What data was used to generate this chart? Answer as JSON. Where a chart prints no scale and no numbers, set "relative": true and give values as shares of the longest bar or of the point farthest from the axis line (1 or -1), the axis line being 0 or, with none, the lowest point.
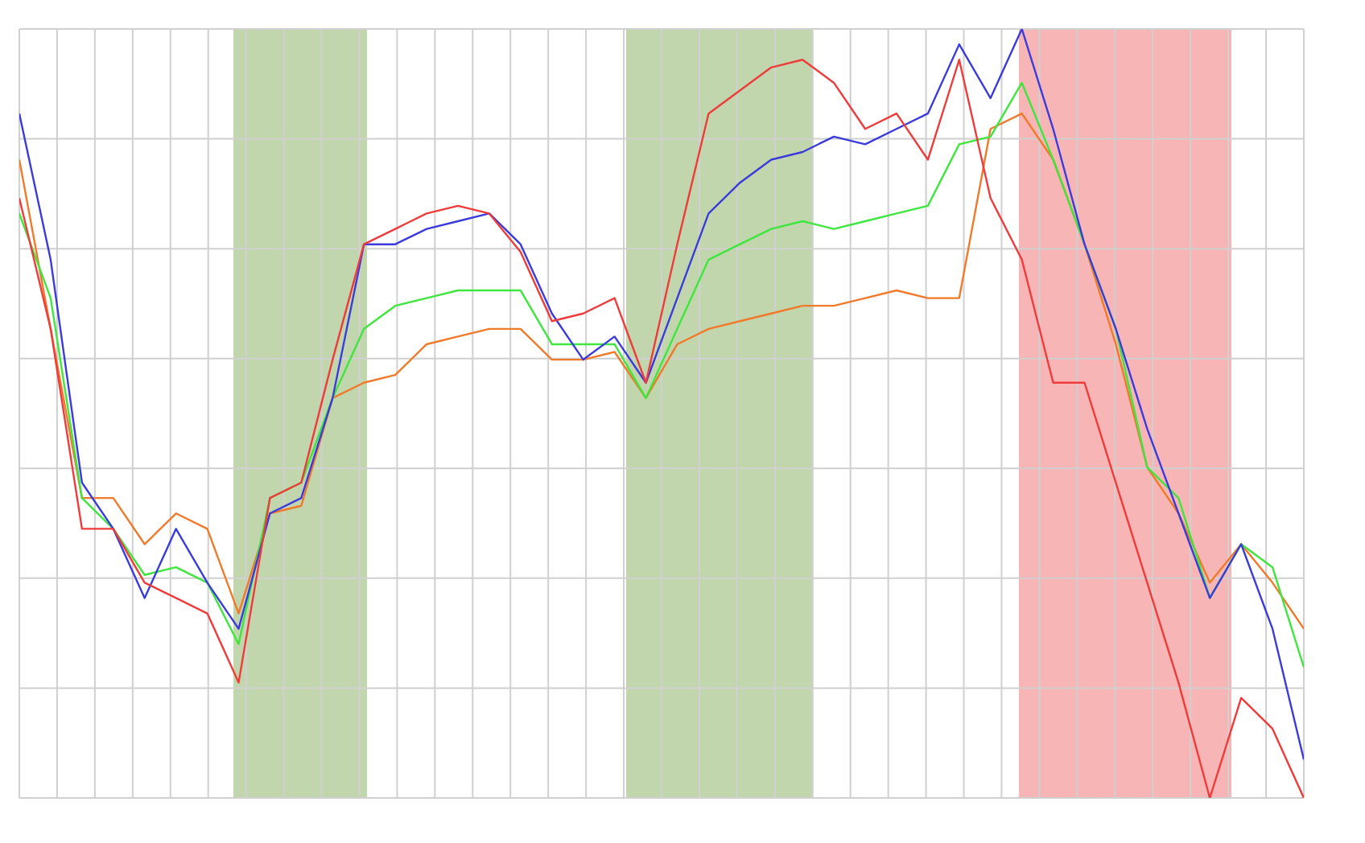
{
  "chart_data": {
    "type": "line",
    "relative": true,
    "grid": true,
    "categories": [
      null,
      null,
      null,
      null,
      null,
      null,
      null,
      null,
      null,
      null,
      null,
      null,
      null,
      null,
      null,
      null,
      null,
      null,
      null,
      null,
      null,
      null,
      null,
      null,
      null,
      null,
      null,
      null,
      null,
      null,
      null,
      null,
      null,
      null,
      null,
      null,
      null,
      null,
      null,
      null,
      null,
      null
    ],
    "series": [
      {
        "color": "#f07a2a",
        "values": [
          0.83,
          0.61,
          0.39,
          0.39,
          0.33,
          0.37,
          0.35,
          0.24,
          0.37,
          0.38,
          0.52,
          0.54,
          0.55,
          0.59,
          0.6,
          0.61,
          0.61,
          0.57,
          0.57,
          0.58,
          0.52,
          0.59,
          0.61,
          0.62,
          0.63,
          0.64,
          0.64,
          0.65,
          0.66,
          0.65,
          0.65,
          0.87,
          0.89,
          0.83,
          0.72,
          0.59,
          0.43,
          0.37,
          0.28,
          0.33,
          0.28,
          0.22
        ]
      },
      {
        "color": "#3ee63e",
        "values": [
          0.76,
          0.65,
          0.39,
          0.35,
          0.29,
          0.3,
          0.28,
          0.2,
          0.39,
          0.41,
          0.52,
          0.61,
          0.64,
          0.65,
          0.66,
          0.66,
          0.66,
          0.59,
          0.59,
          0.59,
          0.52,
          0.61,
          0.7,
          0.72,
          0.74,
          0.75,
          0.74,
          0.75,
          0.76,
          0.77,
          0.85,
          0.86,
          0.93,
          0.83,
          0.72,
          0.61,
          0.43,
          0.39,
          0.26,
          0.33,
          0.3,
          0.17
        ]
      },
      {
        "color": "#3b3bdc",
        "values": [
          0.89,
          0.7,
          0.41,
          0.35,
          0.26,
          0.35,
          0.28,
          0.22,
          0.37,
          0.39,
          0.52,
          0.72,
          0.72,
          0.74,
          0.75,
          0.76,
          0.72,
          0.63,
          0.57,
          0.6,
          0.54,
          0.65,
          0.76,
          0.8,
          0.83,
          0.84,
          0.86,
          0.85,
          0.87,
          0.89,
          0.98,
          0.91,
          1,
          0.87,
          0.72,
          0.61,
          0.48,
          0.37,
          0.26,
          0.33,
          0.22,
          0.05
        ]
      },
      {
        "color": "#ee3b3b",
        "values": [
          0.78,
          0.61,
          0.35,
          0.35,
          0.28,
          0.26,
          0.24,
          0.15,
          0.39,
          0.41,
          0.57,
          0.72,
          0.74,
          0.76,
          0.77,
          0.76,
          0.71,
          0.62,
          0.63,
          0.65,
          0.54,
          0.72,
          0.89,
          0.92,
          0.95,
          0.96,
          0.93,
          0.87,
          0.89,
          0.83,
          0.96,
          0.78,
          0.7,
          0.54,
          0.54,
          0.41,
          0.28,
          0.15,
          0,
          0.13,
          0.09,
          0
        ]
      }
    ]
  }
}
